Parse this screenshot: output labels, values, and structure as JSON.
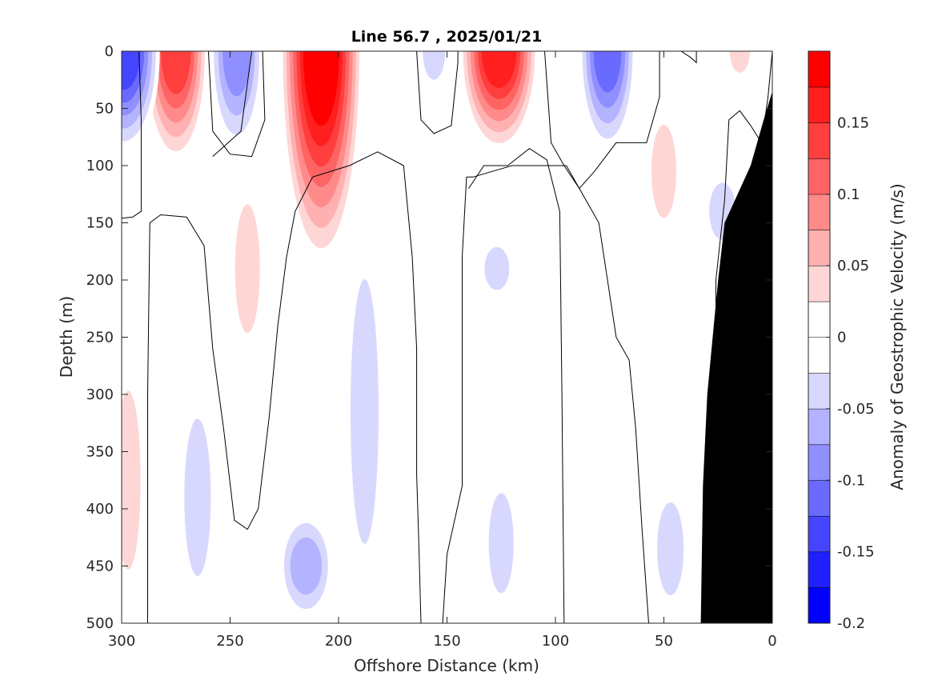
{
  "chart_data": {
    "type": "heatmap",
    "title": "Line 56.7 , 2025/01/21",
    "xlabel": "Offshore Distance (km)",
    "ylabel": "Depth (m)",
    "colorbar_label": "Anomaly of Geostrophic Velocity (m/s)",
    "xlim": [
      300,
      0
    ],
    "ylim": [
      0,
      500
    ],
    "x_ticks": [
      300,
      250,
      200,
      150,
      100,
      50,
      0
    ],
    "y_ticks": [
      0,
      50,
      100,
      150,
      200,
      250,
      300,
      350,
      400,
      450,
      500
    ],
    "colorbar": {
      "range": [
        -0.2,
        0.2
      ],
      "levels": [
        -0.2,
        -0.175,
        -0.15,
        -0.125,
        -0.1,
        -0.075,
        -0.05,
        -0.025,
        0,
        0.025,
        0.05,
        0.075,
        0.1,
        0.125,
        0.15,
        0.175,
        0.2
      ],
      "colors": [
        "#0000ff",
        "#2020ff",
        "#4545ff",
        "#6a6aff",
        "#8f8fff",
        "#b3b3ff",
        "#d8d8ff",
        "#ffffff",
        "#ffffff",
        "#ffd6d6",
        "#ffb0b0",
        "#ff8a8a",
        "#ff6464",
        "#ff3e3e",
        "#ff1f1f",
        "#ff0000"
      ],
      "tick_values": [
        0.15,
        0.1,
        0.05,
        0,
        -0.05,
        -0.1,
        -0.15,
        -0.2
      ],
      "tick_labels": [
        "0.15",
        "0.1",
        "0.05",
        "0",
        "-0.05",
        "-0.1",
        "-0.15",
        "-0.2"
      ]
    },
    "cores": [
      {
        "x": 299,
        "z_top": 0,
        "z_bot": 90,
        "peak": -0.15
      },
      {
        "x": 275,
        "z_top": 0,
        "z_bot": 100,
        "peak": 0.13
      },
      {
        "x": 247,
        "z_top": 0,
        "z_bot": 90,
        "peak": -0.1
      },
      {
        "x": 208,
        "z_top": 0,
        "z_bot": 190,
        "peak": 0.19
      },
      {
        "x": 126,
        "z_top": 0,
        "z_bot": 90,
        "peak": 0.17
      },
      {
        "x": 76,
        "z_top": 0,
        "z_bot": 90,
        "peak": -0.11
      },
      {
        "x": 156,
        "z_top": 0,
        "z_bot": 40,
        "peak": -0.04
      },
      {
        "x": 15,
        "z_top": 0,
        "z_bot": 30,
        "peak": 0.03
      },
      {
        "x": 50,
        "z_top": 40,
        "z_bot": 170,
        "peak": 0.03
      },
      {
        "x": 242,
        "z_top": 100,
        "z_bot": 280,
        "peak": 0.03
      },
      {
        "x": 188,
        "z_top": 130,
        "z_bot": 500,
        "peak": -0.04
      },
      {
        "x": 215,
        "z_top": 400,
        "z_bot": 500,
        "peak": -0.07
      },
      {
        "x": 265,
        "z_top": 280,
        "z_bot": 500,
        "peak": -0.035
      },
      {
        "x": 297,
        "z_top": 250,
        "z_bot": 500,
        "peak": 0.03
      },
      {
        "x": 127,
        "z_top": 160,
        "z_bot": 220,
        "peak": -0.03
      },
      {
        "x": 125,
        "z_top": 360,
        "z_bot": 500,
        "peak": -0.03
      },
      {
        "x": 47,
        "z_top": 370,
        "z_bot": 500,
        "peak": -0.035
      },
      {
        "x": 23,
        "z_top": 100,
        "z_bot": 180,
        "peak": -0.035
      }
    ],
    "zero_contours": [
      [
        [
          292,
          0
        ],
        [
          291,
          60
        ],
        [
          291,
          140
        ],
        [
          295,
          145
        ],
        [
          300,
          146
        ]
      ],
      [
        [
          260,
          0
        ],
        [
          258,
          70
        ],
        [
          250,
          90
        ],
        [
          240,
          92
        ],
        [
          234,
          60
        ],
        [
          235,
          0
        ]
      ],
      [
        [
          240,
          0
        ],
        [
          245,
          70
        ],
        [
          258,
          92
        ]
      ],
      [
        [
          288,
          500
        ],
        [
          288,
          300
        ],
        [
          287,
          150
        ],
        [
          282,
          143
        ],
        [
          270,
          145
        ],
        [
          262,
          170
        ],
        [
          258,
          260
        ],
        [
          253,
          330
        ],
        [
          248,
          410
        ],
        [
          242,
          418
        ],
        [
          237,
          400
        ],
        [
          232,
          320
        ],
        [
          228,
          240
        ],
        [
          224,
          180
        ],
        [
          220,
          140
        ],
        [
          212,
          110
        ],
        [
          195,
          100
        ],
        [
          182,
          88
        ],
        [
          170,
          100
        ],
        [
          166,
          180
        ],
        [
          164,
          260
        ],
        [
          164,
          370
        ],
        [
          163,
          430
        ],
        [
          162,
          500
        ]
      ],
      [
        [
          164,
          0
        ],
        [
          162,
          60
        ],
        [
          156,
          72
        ],
        [
          148,
          65
        ],
        [
          145,
          10
        ],
        [
          145,
          0
        ]
      ],
      [
        [
          140,
          120
        ],
        [
          133,
          100
        ],
        [
          122,
          100
        ],
        [
          112,
          85
        ],
        [
          104,
          95
        ],
        [
          98,
          140
        ],
        [
          97,
          300
        ],
        [
          96,
          500
        ]
      ],
      [
        [
          141,
          110
        ],
        [
          143,
          180
        ],
        [
          143,
          260
        ],
        [
          143,
          380
        ],
        [
          150,
          440
        ],
        [
          152,
          500
        ]
      ],
      [
        [
          105,
          0
        ],
        [
          102,
          80
        ],
        [
          96,
          100
        ],
        [
          89,
          120
        ],
        [
          82,
          105
        ],
        [
          72,
          80
        ],
        [
          58,
          80
        ],
        [
          52,
          40
        ],
        [
          52,
          0
        ]
      ],
      [
        [
          57,
          500
        ],
        [
          60,
          420
        ],
        [
          63,
          330
        ],
        [
          66,
          270
        ],
        [
          72,
          250
        ],
        [
          80,
          150
        ],
        [
          95,
          100
        ],
        [
          120,
          100
        ],
        [
          138,
          110
        ],
        [
          141,
          110
        ]
      ],
      [
        [
          42,
          0
        ],
        [
          38,
          5
        ],
        [
          35,
          10
        ],
        [
          35,
          0
        ]
      ],
      [
        [
          30,
          500
        ],
        [
          28,
          450
        ],
        [
          26,
          300
        ],
        [
          26,
          200
        ],
        [
          22,
          130
        ],
        [
          20,
          60
        ],
        [
          15,
          52
        ],
        [
          10,
          65
        ],
        [
          5,
          80
        ],
        [
          2,
          40
        ],
        [
          0,
          0
        ]
      ]
    ],
    "bathymetry": [
      [
        33,
        500
      ],
      [
        32,
        380
      ],
      [
        30,
        300
      ],
      [
        27,
        240
      ],
      [
        25,
        200
      ],
      [
        22,
        150
      ],
      [
        10,
        100
      ],
      [
        4,
        60
      ],
      [
        0,
        35
      ],
      [
        0,
        500
      ]
    ]
  }
}
